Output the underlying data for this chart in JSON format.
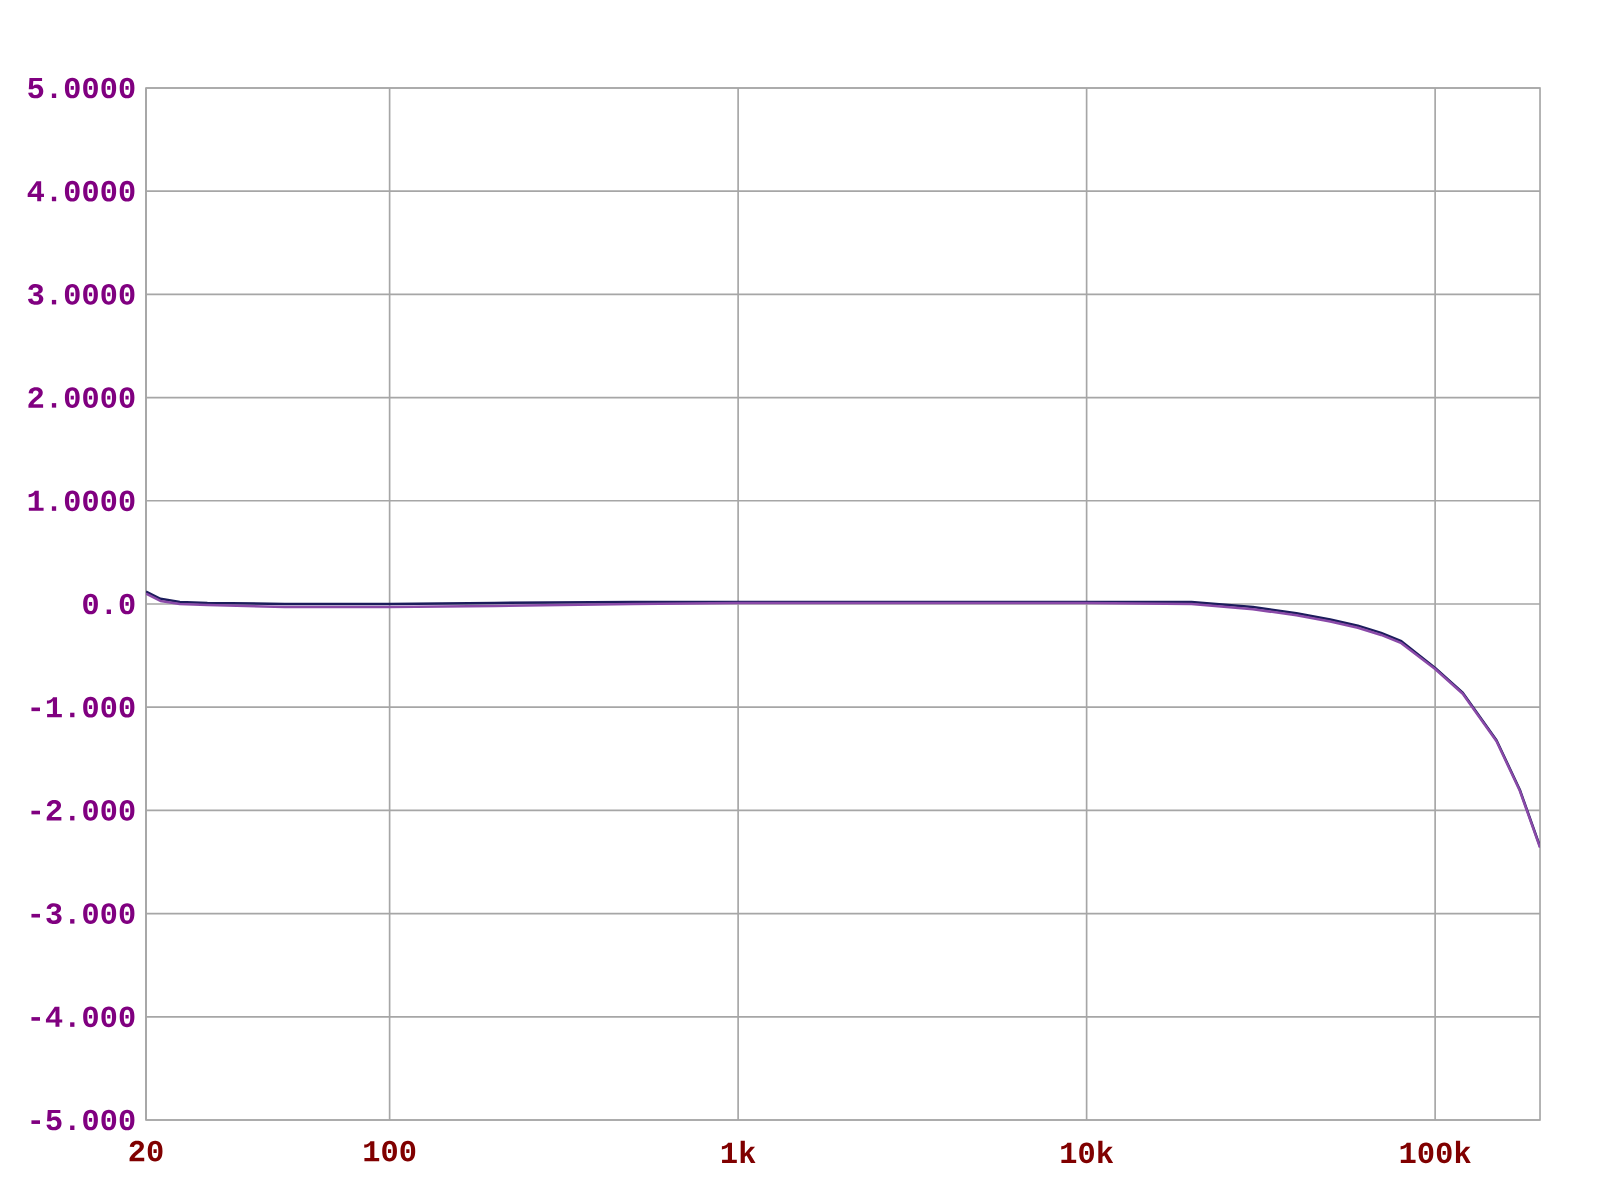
{
  "chart_data": {
    "type": "line",
    "log": "x",
    "grid": true,
    "line_style": "solid",
    "x": [
      20,
      22,
      25,
      30,
      50,
      100,
      200,
      500,
      1000,
      5000,
      10000,
      20000,
      30000,
      40000,
      50000,
      60000,
      70000,
      80000,
      100000,
      120000,
      150000,
      175000,
      200000
    ],
    "series": [
      {
        "color": "#1c1c5c",
        "values": [
          0.12,
          0.05,
          0.02,
          0.01,
          0.0,
          0.0,
          0.01,
          0.02,
          0.02,
          0.02,
          0.02,
          0.02,
          -0.03,
          -0.09,
          -0.15,
          -0.21,
          -0.28,
          -0.36,
          -0.62,
          -0.86,
          -1.32,
          -1.8,
          -2.35
        ]
      },
      {
        "color": "#8a4aa8",
        "values": [
          0.1,
          0.03,
          0.0,
          -0.01,
          -0.03,
          -0.03,
          -0.02,
          0.0,
          0.01,
          0.01,
          0.01,
          0.0,
          -0.05,
          -0.11,
          -0.17,
          -0.23,
          -0.3,
          -0.38,
          -0.63,
          -0.87,
          -1.33,
          -1.81,
          -2.36
        ]
      }
    ],
    "xlim": [
      20,
      200000
    ],
    "ylim": [
      -5,
      5
    ],
    "xticks": [
      20,
      100,
      {
        "value": 1000,
        "label": "1k"
      },
      {
        "value": 10000,
        "label": "10k"
      },
      {
        "value": 100000,
        "label": "100k"
      }
    ],
    "yticks": [
      {
        "value": -5,
        "label": "-5.000"
      },
      {
        "value": -4,
        "label": "-4.000"
      },
      {
        "value": -3,
        "label": "-3.000"
      },
      {
        "value": -2,
        "label": "-2.000"
      },
      {
        "value": -1,
        "label": "-1.000"
      },
      {
        "value": 0,
        "label": "0.0"
      },
      {
        "value": 1,
        "label": "1.0000"
      },
      {
        "value": 2,
        "label": "2.0000"
      },
      {
        "value": 3,
        "label": "3.0000"
      },
      {
        "value": 4,
        "label": "4.0000"
      },
      {
        "value": 5,
        "label": "5.0000"
      }
    ]
  }
}
